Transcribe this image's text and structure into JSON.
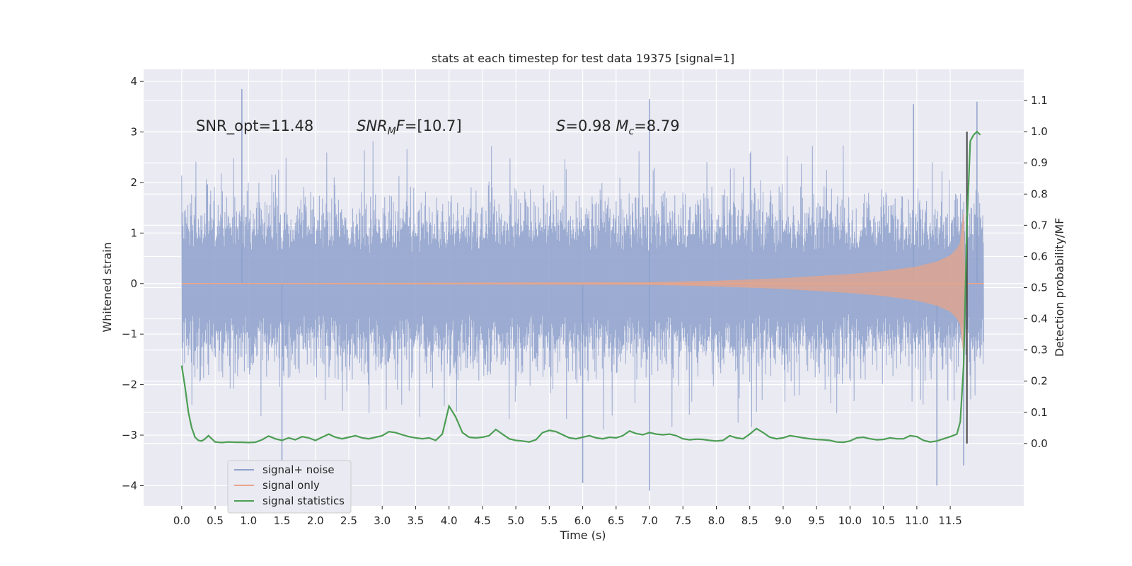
{
  "chart_data": {
    "type": "line",
    "title": "stats at each timestep for test data 19375 [signal=1]",
    "xlabel": "Time (s)",
    "ylabel_left": "Whitened strain",
    "ylabel_right": "Detection probability/MF",
    "xlim": [
      -0.57,
      12.6
    ],
    "ylim_left": [
      -4.4,
      4.24
    ],
    "ylim_right": [
      -0.2,
      1.2
    ],
    "x_ticks": [
      "0.0",
      "0.5",
      "1.0",
      "1.5",
      "2.0",
      "2.5",
      "3.0",
      "3.5",
      "4.0",
      "4.5",
      "5.0",
      "5.5",
      "6.0",
      "6.5",
      "7.0",
      "7.5",
      "8.0",
      "8.5",
      "9.0",
      "9.5",
      "10.0",
      "10.5",
      "11.0",
      "11.5"
    ],
    "left_ticks": [
      "4",
      "3",
      "2",
      "1",
      "0",
      "−1",
      "−2",
      "−3",
      "−4"
    ],
    "right_ticks": [
      "1.1",
      "1.0",
      "0.9",
      "0.8",
      "0.7",
      "0.6",
      "0.5",
      "0.4",
      "0.3",
      "0.2",
      "0.1",
      "0.0"
    ],
    "grid": true,
    "legend_position": "lower-left",
    "annotations": [
      {
        "text": "SNR_opt=11.48",
        "x": 0.2,
        "y": 3.0
      },
      {
        "text": "SNR_M F=[10.7]",
        "x": 2.6,
        "y": 3.0
      },
      {
        "text": "S=0.98   M_c=8.79",
        "x": 5.6,
        "y": 3.0
      }
    ],
    "vertical_line": {
      "x": 11.75,
      "from": 0.0,
      "to": 1.0
    },
    "series": [
      {
        "name": "signal+ noise",
        "color": "#8da0cb",
        "axis": "left",
        "x_range": [
          0.0,
          12.0
        ],
        "envelope_typical": [
          -1.8,
          1.8
        ],
        "peaks": [
          [
            0.9,
            3.85
          ],
          [
            7.0,
            3.65
          ],
          [
            10.95,
            3.55
          ],
          [
            11.9,
            3.6
          ],
          [
            1.5,
            -3.5
          ],
          [
            6.0,
            -3.95
          ],
          [
            7.0,
            -4.1
          ],
          [
            11.3,
            -4.0
          ],
          [
            11.7,
            -3.6
          ]
        ]
      },
      {
        "name": "signal only",
        "color": "#e8a58a",
        "axis": "left",
        "x_range": [
          0.0,
          12.0
        ],
        "amplitude_profile": [
          [
            0.0,
            0.0
          ],
          [
            7.0,
            0.02
          ],
          [
            8.0,
            0.05
          ],
          [
            9.0,
            0.1
          ],
          [
            10.0,
            0.18
          ],
          [
            10.5,
            0.24
          ],
          [
            11.0,
            0.33
          ],
          [
            11.3,
            0.43
          ],
          [
            11.5,
            0.55
          ],
          [
            11.6,
            0.68
          ],
          [
            11.65,
            0.8
          ],
          [
            11.7,
            1.4
          ],
          [
            11.72,
            0.0
          ],
          [
            12.0,
            0.0
          ]
        ]
      },
      {
        "name": "signal statistics",
        "color": "#4c9e54",
        "axis": "right",
        "points": [
          [
            0.0,
            0.25
          ],
          [
            0.05,
            0.18
          ],
          [
            0.1,
            0.1
          ],
          [
            0.15,
            0.05
          ],
          [
            0.2,
            0.02
          ],
          [
            0.25,
            0.01
          ],
          [
            0.3,
            0.008
          ],
          [
            0.35,
            0.015
          ],
          [
            0.4,
            0.025
          ],
          [
            0.45,
            0.015
          ],
          [
            0.5,
            0.005
          ],
          [
            0.6,
            0.003
          ],
          [
            0.7,
            0.005
          ],
          [
            0.8,
            0.004
          ],
          [
            0.9,
            0.004
          ],
          [
            1.0,
            0.003
          ],
          [
            1.1,
            0.004
          ],
          [
            1.2,
            0.012
          ],
          [
            1.3,
            0.024
          ],
          [
            1.4,
            0.015
          ],
          [
            1.5,
            0.01
          ],
          [
            1.6,
            0.018
          ],
          [
            1.7,
            0.012
          ],
          [
            1.8,
            0.022
          ],
          [
            1.9,
            0.018
          ],
          [
            2.0,
            0.01
          ],
          [
            2.1,
            0.02
          ],
          [
            2.2,
            0.03
          ],
          [
            2.3,
            0.02
          ],
          [
            2.4,
            0.015
          ],
          [
            2.5,
            0.02
          ],
          [
            2.6,
            0.025
          ],
          [
            2.7,
            0.018
          ],
          [
            2.8,
            0.015
          ],
          [
            2.9,
            0.02
          ],
          [
            3.0,
            0.025
          ],
          [
            3.1,
            0.038
          ],
          [
            3.2,
            0.035
          ],
          [
            3.3,
            0.028
          ],
          [
            3.4,
            0.022
          ],
          [
            3.5,
            0.018
          ],
          [
            3.6,
            0.015
          ],
          [
            3.7,
            0.018
          ],
          [
            3.8,
            0.01
          ],
          [
            3.9,
            0.03
          ],
          [
            4.0,
            0.12
          ],
          [
            4.1,
            0.085
          ],
          [
            4.2,
            0.035
          ],
          [
            4.3,
            0.02
          ],
          [
            4.4,
            0.018
          ],
          [
            4.5,
            0.02
          ],
          [
            4.6,
            0.025
          ],
          [
            4.7,
            0.045
          ],
          [
            4.8,
            0.03
          ],
          [
            4.9,
            0.015
          ],
          [
            5.0,
            0.01
          ],
          [
            5.1,
            0.008
          ],
          [
            5.2,
            0.005
          ],
          [
            5.3,
            0.012
          ],
          [
            5.4,
            0.035
          ],
          [
            5.5,
            0.042
          ],
          [
            5.6,
            0.038
          ],
          [
            5.7,
            0.028
          ],
          [
            5.8,
            0.018
          ],
          [
            5.9,
            0.015
          ],
          [
            6.0,
            0.02
          ],
          [
            6.1,
            0.025
          ],
          [
            6.2,
            0.018
          ],
          [
            6.3,
            0.015
          ],
          [
            6.4,
            0.02
          ],
          [
            6.5,
            0.018
          ],
          [
            6.6,
            0.025
          ],
          [
            6.7,
            0.04
          ],
          [
            6.8,
            0.032
          ],
          [
            6.9,
            0.028
          ],
          [
            7.0,
            0.035
          ],
          [
            7.1,
            0.03
          ],
          [
            7.2,
            0.028
          ],
          [
            7.3,
            0.03
          ],
          [
            7.4,
            0.025
          ],
          [
            7.5,
            0.015
          ],
          [
            7.6,
            0.012
          ],
          [
            7.7,
            0.014
          ],
          [
            7.8,
            0.013
          ],
          [
            7.9,
            0.01
          ],
          [
            8.0,
            0.008
          ],
          [
            8.1,
            0.01
          ],
          [
            8.2,
            0.025
          ],
          [
            8.3,
            0.018
          ],
          [
            8.4,
            0.015
          ],
          [
            8.5,
            0.03
          ],
          [
            8.6,
            0.048
          ],
          [
            8.7,
            0.035
          ],
          [
            8.8,
            0.02
          ],
          [
            8.9,
            0.015
          ],
          [
            9.0,
            0.018
          ],
          [
            9.1,
            0.025
          ],
          [
            9.2,
            0.022
          ],
          [
            9.3,
            0.018
          ],
          [
            9.4,
            0.015
          ],
          [
            9.5,
            0.013
          ],
          [
            9.6,
            0.012
          ],
          [
            9.7,
            0.01
          ],
          [
            9.8,
            0.005
          ],
          [
            9.9,
            0.004
          ],
          [
            10.0,
            0.008
          ],
          [
            10.1,
            0.018
          ],
          [
            10.2,
            0.02
          ],
          [
            10.3,
            0.015
          ],
          [
            10.4,
            0.012
          ],
          [
            10.5,
            0.013
          ],
          [
            10.6,
            0.018
          ],
          [
            10.7,
            0.015
          ],
          [
            10.8,
            0.015
          ],
          [
            10.9,
            0.025
          ],
          [
            11.0,
            0.022
          ],
          [
            11.1,
            0.01
          ],
          [
            11.2,
            0.005
          ],
          [
            11.3,
            0.008
          ],
          [
            11.4,
            0.015
          ],
          [
            11.5,
            0.022
          ],
          [
            11.6,
            0.03
          ],
          [
            11.65,
            0.07
          ],
          [
            11.7,
            0.25
          ],
          [
            11.75,
            0.7
          ],
          [
            11.8,
            0.97
          ],
          [
            11.85,
            0.99
          ],
          [
            11.9,
            1.0
          ],
          [
            11.95,
            0.99
          ]
        ]
      }
    ]
  },
  "colors": {
    "plot_bg": "#eaeaf2",
    "grid": "#ffffff",
    "text": "#262626",
    "vline": "#444444"
  }
}
